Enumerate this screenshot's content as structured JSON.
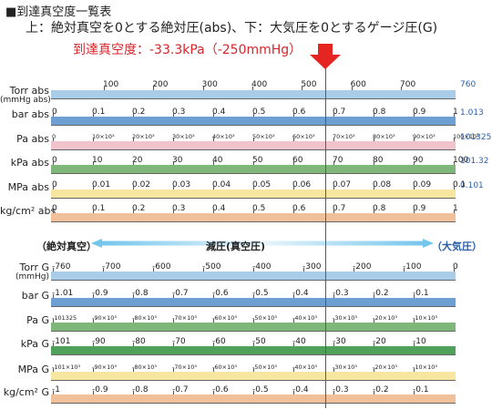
{
  "header": {
    "title": "■到達真空度一覧表",
    "subtitle": "上：絶対真空を0とする絶対圧(abs)、下：大気圧を0とするゲージ圧(G)",
    "reach_label": "到達真空度：-33.3kPa（-250mmHg）"
  },
  "colors": {
    "blue": "#a9cde9",
    "bar_blue": "#6d9fd2",
    "pink": "#f0c4cc",
    "green": "#7fb77a",
    "green_dark": "#4fa05b",
    "yellow": "#f6e6a0",
    "orange": "#f0c09a",
    "accent_red": "#d6262b",
    "side_blue": "#2b5fa8"
  },
  "abs_rows": [
    {
      "label": "Torr abs\n(mmHg abs)",
      "color": "blue",
      "side": "760",
      "ticks": [
        "100",
        "200",
        "300",
        "400",
        "500",
        "600",
        "700"
      ],
      "top_numbers": true
    },
    {
      "label": "bar abs",
      "color": "bar_blue",
      "side": "1.013",
      "ticks": [
        "0",
        "0.1",
        "0.2",
        "0.3",
        "0.4",
        "0.5",
        "0.6",
        "0.7",
        "0.8",
        "0.9",
        "1"
      ]
    },
    {
      "label": "Pa abs",
      "color": "pink",
      "side": "101325",
      "ticks": [
        "0",
        "10×10³",
        "20×10³",
        "30×10³",
        "40×10³",
        "50×10³",
        "60×10³",
        "70×10³",
        "80×10³",
        "90×10³",
        "100×10³"
      ],
      "small": true
    },
    {
      "label": "kPa abs",
      "color": "green",
      "side": "101.32",
      "ticks": [
        "0",
        "10",
        "20",
        "30",
        "40",
        "50",
        "60",
        "70",
        "80",
        "90",
        "100"
      ]
    },
    {
      "label": "MPa abs",
      "color": "yellow",
      "side": "0.101",
      "ticks": [
        "0",
        "0.01",
        "0.02",
        "0.03",
        "0.04",
        "0.05",
        "0.06",
        "0.07",
        "0.08",
        "0.09",
        "0.1"
      ]
    },
    {
      "label": "kg/cm² abs",
      "color": "orange",
      "side": "",
      "ticks": [
        "0",
        "0.1",
        "0.2",
        "0.3",
        "0.4",
        "0.5",
        "0.6",
        "0.7",
        "0.8",
        "0.9",
        "1"
      ]
    }
  ],
  "middle": {
    "left": "（絶対真空）",
    "center": "減圧(真空圧)",
    "right": "（大気圧）"
  },
  "gauge_rows": [
    {
      "label": "Torr G\n(mmHg)",
      "color": "blue",
      "ticks": [
        "-760",
        "-700",
        "-600",
        "-500",
        "-400",
        "-300",
        "-200",
        "-100",
        "0"
      ]
    },
    {
      "label": "bar G",
      "color": "bar_blue",
      "ticks": [
        "-1.01",
        "-0.9",
        "-0.8",
        "-0.7",
        "-0.6",
        "-0.5",
        "-0.4",
        "-0.3",
        "-0.2",
        "-0.1"
      ]
    },
    {
      "label": "Pa G",
      "color": "green",
      "ticks": [
        "-101325",
        "-90×10³",
        "-80×10³",
        "-70×10³",
        "-60×10³",
        "-50×10³",
        "-40×10³",
        "-30×10³",
        "-20×10³",
        "-10×10³"
      ],
      "small": true
    },
    {
      "label": "kPa G",
      "color": "green_dark",
      "ticks": [
        "-101",
        "-90",
        "-80",
        "-70",
        "-60",
        "-50",
        "-40",
        "-30",
        "-20",
        "-10"
      ]
    },
    {
      "label": "MPa G",
      "color": "yellow",
      "ticks": [
        "-101×10³",
        "-90×10³",
        "-80×10³",
        "-70×10³",
        "-60×10³",
        "-50×10³",
        "-40×10³",
        "-30×10³",
        "-20×10³",
        "-10×10³"
      ],
      "small": true
    },
    {
      "label": "kg/cm² G",
      "color": "orange",
      "ticks": [
        "-1",
        "-0.9",
        "-0.8",
        "-0.7",
        "-0.6",
        "-0.5",
        "-0.4",
        "-0.3",
        "-0.2",
        "-0.1"
      ]
    }
  ]
}
